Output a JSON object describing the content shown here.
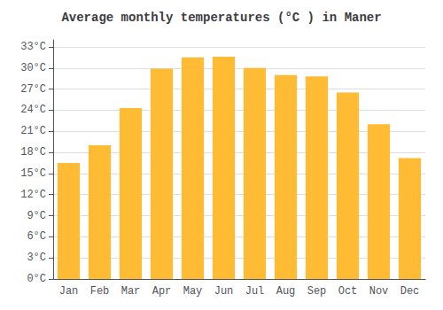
{
  "chart_data": {
    "type": "bar",
    "title": "Average monthly temperatures (°C ) in Maner",
    "categories": [
      "Jan",
      "Feb",
      "Mar",
      "Apr",
      "May",
      "Jun",
      "Jul",
      "Aug",
      "Sep",
      "Oct",
      "Nov",
      "Dec"
    ],
    "values": [
      16.5,
      19.0,
      24.3,
      29.9,
      31.5,
      31.6,
      30.0,
      29.0,
      28.8,
      26.5,
      22.0,
      17.2
    ],
    "color": "#FFBB33",
    "ylim": [
      0,
      34
    ],
    "yticks": [
      {
        "value": 0,
        "label": "0°C"
      },
      {
        "value": 3,
        "label": "3°C"
      },
      {
        "value": 6,
        "label": "6°C"
      },
      {
        "value": 9,
        "label": "9°C"
      },
      {
        "value": 12,
        "label": "12°C"
      },
      {
        "value": 15,
        "label": "15°C"
      },
      {
        "value": 18,
        "label": "18°C"
      },
      {
        "value": 21,
        "label": "21°C"
      },
      {
        "value": 24,
        "label": "24°C"
      },
      {
        "value": 27,
        "label": "27°C"
      },
      {
        "value": 30,
        "label": "30°C"
      },
      {
        "value": 33,
        "label": "33°C"
      }
    ],
    "grid": true
  }
}
